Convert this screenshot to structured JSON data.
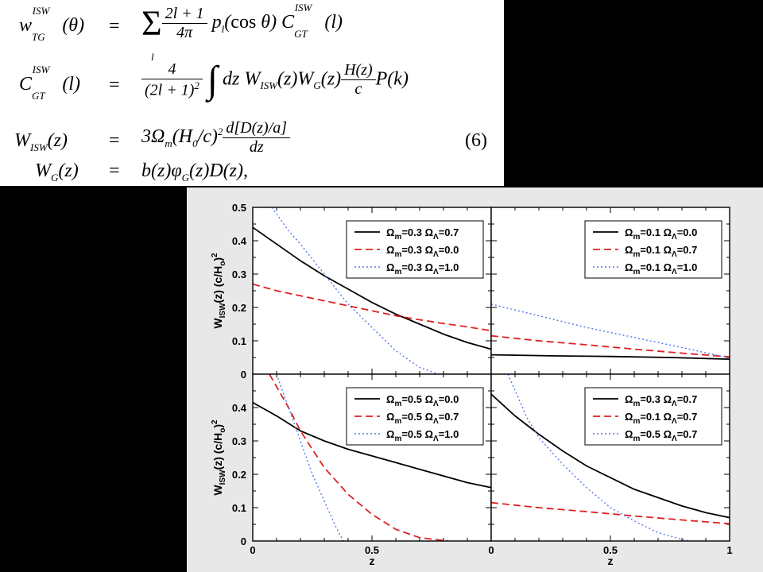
{
  "equations": {
    "eq_number": "(6)",
    "rows": [
      {
        "lhs": "w_TG^ISW(θ)",
        "rhs": "Σ_l (2l+1)/(4π) p_l(cos θ) C_GT^ISW(l)"
      },
      {
        "lhs": "C_GT^ISW(l)",
        "rhs": "4/(2l+1)^2 ∫ dz W_ISW(z) W_G(z) H(z)/c P(k)"
      },
      {
        "lhs": "W_ISW(z)",
        "rhs": "3Ω_m(H_0/c)^2 d[D(z)/a]/dz"
      },
      {
        "lhs": "W_G(z)",
        "rhs": "b(z)φ_G(z)D(z),"
      }
    ]
  },
  "chart_data": {
    "type": "line",
    "xlabel": "z",
    "ylabel": "W_ISW(z) (c/H_o)^2",
    "colors": {
      "solid": "#000000",
      "dashed": "#e02020",
      "dotted": "#5577ee"
    },
    "panels": [
      {
        "position": "top-left",
        "xlim": [
          0,
          1
        ],
        "ylim": [
          0,
          0.5
        ],
        "xticks": [
          "0",
          "0.5",
          "1"
        ],
        "yticks": [
          "0",
          "0.1",
          "0.2",
          "0.3",
          "0.4",
          "0.5"
        ],
        "legend_position": "top-right",
        "series": [
          {
            "name": "Ω_m=0.3 Ω_Λ=0.7",
            "style": "solid",
            "x": [
              0,
              0.1,
              0.2,
              0.3,
              0.4,
              0.5,
              0.6,
              0.7,
              0.8,
              0.9,
              1.0
            ],
            "y": [
              0.44,
              0.39,
              0.34,
              0.295,
              0.255,
              0.215,
              0.18,
              0.15,
              0.12,
              0.095,
              0.075
            ]
          },
          {
            "name": "Ω_m=0.3 Ω_Λ=0.0",
            "style": "dashed",
            "x": [
              0,
              0.1,
              0.2,
              0.3,
              0.4,
              0.5,
              0.6,
              0.7,
              0.8,
              0.9,
              1.0
            ],
            "y": [
              0.27,
              0.25,
              0.235,
              0.22,
              0.205,
              0.19,
              0.175,
              0.163,
              0.152,
              0.142,
              0.13
            ]
          },
          {
            "name": "Ω_m=0.3 Ω_Λ=1.0",
            "style": "dotted",
            "x": [
              0.08,
              0.15,
              0.2,
              0.3,
              0.4,
              0.5,
              0.6,
              0.7,
              0.78
            ],
            "y": [
              0.5,
              0.43,
              0.39,
              0.3,
              0.21,
              0.14,
              0.07,
              0.02,
              0.0
            ]
          }
        ]
      },
      {
        "position": "top-right",
        "xlim": [
          0,
          1
        ],
        "ylim": [
          0,
          0.5
        ],
        "xticks": [
          "0",
          "0.5",
          "1"
        ],
        "yticks": [],
        "legend_position": "top-right",
        "series": [
          {
            "name": "Ω_m=0.1 Ω_Λ=0.0",
            "style": "solid",
            "x": [
              0,
              0.25,
              0.5,
              0.75,
              1.0
            ],
            "y": [
              0.058,
              0.055,
              0.053,
              0.05,
              0.045
            ]
          },
          {
            "name": "Ω_m=0.1 Ω_Λ=0.7",
            "style": "dashed",
            "x": [
              0,
              0.2,
              0.4,
              0.6,
              0.8,
              1.0
            ],
            "y": [
              0.115,
              0.1,
              0.088,
              0.075,
              0.063,
              0.052
            ]
          },
          {
            "name": "Ω_m=0.1 Ω_Λ=1.0",
            "style": "dotted",
            "x": [
              0,
              0.2,
              0.4,
              0.6,
              0.8,
              1.0
            ],
            "y": [
              0.21,
              0.175,
              0.14,
              0.11,
              0.08,
              0.048
            ]
          }
        ]
      },
      {
        "position": "bottom-left",
        "xlim": [
          0,
          1
        ],
        "ylim": [
          0,
          0.5
        ],
        "xticks": [
          "0",
          "0.5",
          "1"
        ],
        "yticks": [
          "0",
          "0.1",
          "0.2",
          "0.3",
          "0.4"
        ],
        "legend_position": "top-right",
        "series": [
          {
            "name": "Ω_m=0.5 Ω_Λ=0.0",
            "style": "solid",
            "x": [
              0,
              0.1,
              0.2,
              0.3,
              0.4,
              0.5,
              0.6,
              0.7,
              0.8,
              0.9,
              1.0
            ],
            "y": [
              0.415,
              0.375,
              0.33,
              0.3,
              0.275,
              0.255,
              0.235,
              0.215,
              0.195,
              0.175,
              0.16
            ]
          },
          {
            "name": "Ω_m=0.5 Ω_Λ=0.7",
            "style": "dashed",
            "x": [
              0.07,
              0.15,
              0.2,
              0.3,
              0.4,
              0.5,
              0.6,
              0.7,
              0.82
            ],
            "y": [
              0.5,
              0.4,
              0.33,
              0.22,
              0.14,
              0.08,
              0.035,
              0.01,
              0.0
            ]
          },
          {
            "name": "Ω_m=0.5 Ω_Λ=1.0",
            "style": "dotted",
            "x": [
              0.1,
              0.15,
              0.2,
              0.25,
              0.3,
              0.35,
              0.38
            ],
            "y": [
              0.5,
              0.4,
              0.3,
              0.2,
              0.12,
              0.04,
              0.0
            ]
          }
        ]
      },
      {
        "position": "bottom-right",
        "xlim": [
          0,
          1
        ],
        "ylim": [
          0,
          0.5
        ],
        "xticks": [
          "0",
          "0.5",
          "1"
        ],
        "yticks": [],
        "legend_position": "top-right",
        "series": [
          {
            "name": "Ω_m=0.3 Ω_Λ=0.7",
            "style": "solid",
            "x": [
              0,
              0.1,
              0.2,
              0.3,
              0.4,
              0.5,
              0.6,
              0.7,
              0.8,
              0.9,
              1.0
            ],
            "y": [
              0.44,
              0.375,
              0.32,
              0.27,
              0.225,
              0.19,
              0.155,
              0.13,
              0.105,
              0.085,
              0.07
            ]
          },
          {
            "name": "Ω_m=0.1 Ω_Λ=0.7",
            "style": "dashed",
            "x": [
              0,
              0.2,
              0.4,
              0.6,
              0.8,
              1.0
            ],
            "y": [
              0.115,
              0.1,
              0.088,
              0.075,
              0.063,
              0.052
            ]
          },
          {
            "name": "Ω_m=0.5 Ω_Λ=0.7",
            "style": "dotted",
            "x": [
              0.07,
              0.15,
              0.2,
              0.3,
              0.4,
              0.5,
              0.6,
              0.7,
              0.8,
              0.83
            ],
            "y": [
              0.5,
              0.37,
              0.31,
              0.23,
              0.16,
              0.1,
              0.06,
              0.025,
              0.005,
              0.0
            ]
          }
        ]
      }
    ]
  }
}
